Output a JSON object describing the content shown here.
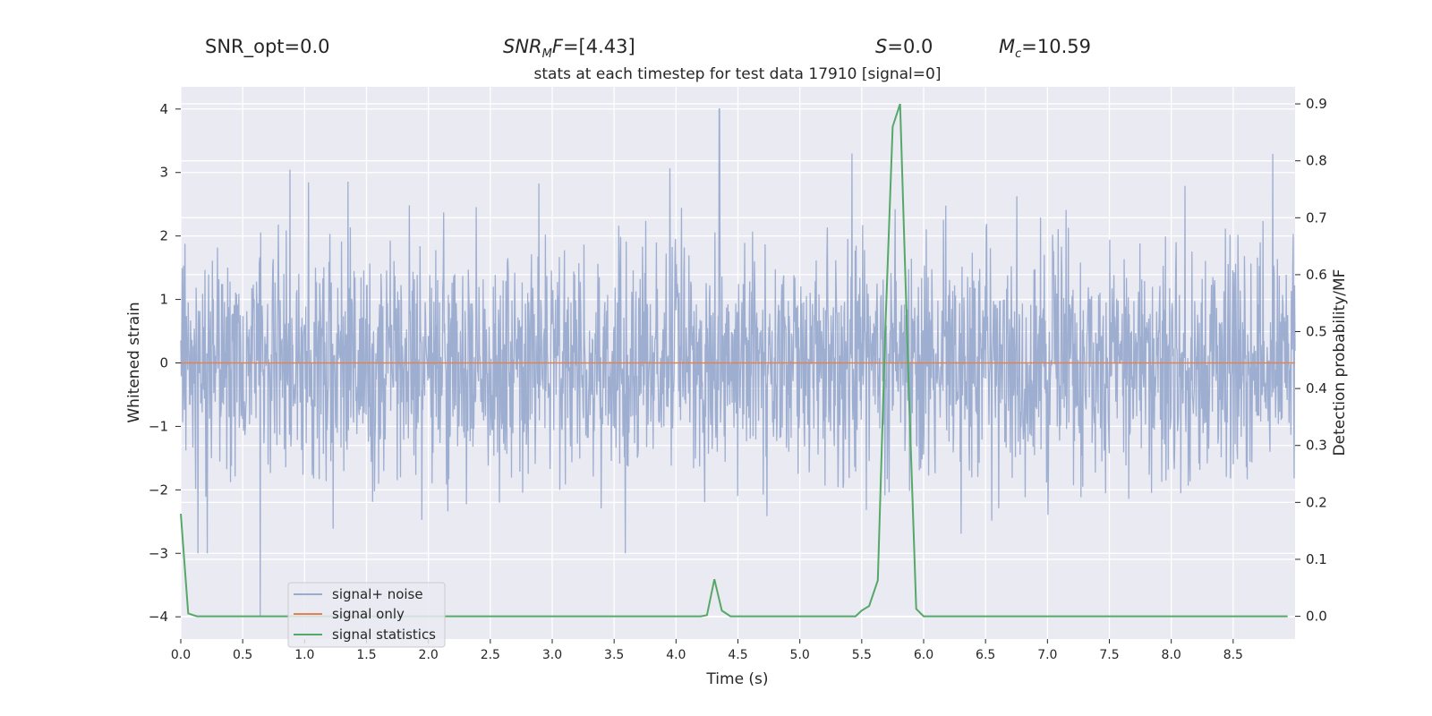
{
  "header": {
    "snr_opt": "SNR_opt=0.0",
    "snr_mf_label": "SNR",
    "snr_mf_sub": "M",
    "snr_mf_suffix": "F",
    "snr_mf_value": "=[4.43]",
    "s_label": "S",
    "s_value": "=0.0",
    "mc_label": "M",
    "mc_sub": "c",
    "mc_value": "=10.59"
  },
  "chart_data": {
    "type": "line",
    "title": "stats at each timestep for test data 17910 [signal=0]",
    "xlabel": "Time (s)",
    "ylabel": "Whitened strain",
    "y2label": "Detection probability/MF",
    "xlim": [
      0.0,
      9.0
    ],
    "ylim": [
      -4.35,
      4.35
    ],
    "y2lim": [
      -0.04,
      0.93
    ],
    "x_ticks": [
      "0.0",
      "0.5",
      "1.0",
      "1.5",
      "2.0",
      "2.5",
      "3.0",
      "3.5",
      "4.0",
      "4.5",
      "5.0",
      "5.5",
      "6.0",
      "6.5",
      "7.0",
      "7.5",
      "8.0",
      "8.5"
    ],
    "y_ticks": [
      "4",
      "3",
      "2",
      "1",
      "0",
      "−1",
      "−2",
      "−3",
      "−4"
    ],
    "y2_ticks": [
      "0.9",
      "0.8",
      "0.7",
      "0.6",
      "0.5",
      "0.4",
      "0.3",
      "0.2",
      "0.1",
      "0.0"
    ],
    "grid": true,
    "legend_position": "lower-left",
    "legend": [
      "signal+ noise",
      "signal only",
      "signal statistics"
    ],
    "colors": {
      "noise": "#9aabcf",
      "signal": "#dd8452",
      "stats": "#55a868",
      "bg": "#eaeaf2"
    },
    "series": [
      {
        "name": "signal+ noise",
        "axis": "left",
        "note_values": "whitened strain noise, amplitude mostly within ±2.5, peaks ~4.0 at t≈4.35 and ~-4.0 at t≈0.64"
      },
      {
        "name": "signal only",
        "axis": "left",
        "x": [
          0.0,
          9.0
        ],
        "y": [
          0.0,
          0.0
        ]
      },
      {
        "name": "signal statistics",
        "axis": "right",
        "x": [
          0.0,
          0.06,
          0.13,
          0.5,
          1.0,
          2.0,
          3.0,
          4.0,
          4.2,
          4.25,
          4.31,
          4.37,
          4.44,
          5.0,
          5.45,
          5.5,
          5.56,
          5.63,
          5.69,
          5.75,
          5.81,
          5.88,
          5.94,
          6.0,
          6.06,
          6.5,
          7.0,
          8.0,
          8.94
        ],
        "y": [
          0.18,
          0.005,
          0.0,
          0.0,
          0.0,
          0.0,
          0.0,
          0.0,
          0.0,
          0.002,
          0.065,
          0.01,
          0.0,
          0.0,
          0.0,
          0.01,
          0.018,
          0.063,
          0.5,
          0.86,
          0.9,
          0.4,
          0.013,
          0.0,
          0.0,
          0.0,
          0.0,
          0.0,
          0.0
        ]
      }
    ]
  }
}
